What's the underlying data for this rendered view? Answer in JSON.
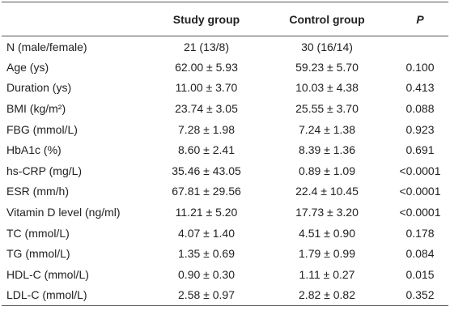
{
  "table": {
    "header": [
      "",
      "Study group",
      "Control group",
      "P"
    ],
    "rows": [
      [
        "N (male/female)",
        "21 (13/8)",
        "30 (16/14)",
        ""
      ],
      [
        "Age (ys)",
        "62.00 ± 5.93",
        "59.23 ± 5.70",
        "0.100"
      ],
      [
        "Duration (ys)",
        "11.00 ± 3.70",
        "10.03 ± 4.38",
        "0.413"
      ],
      [
        "BMI (kg/m²)",
        "23.74 ± 3.05",
        "25.55 ± 3.70",
        "0.088"
      ],
      [
        "FBG (mmol/L)",
        "7.28 ± 1.98",
        "7.24 ± 1.38",
        "0.923"
      ],
      [
        "HbA1c (%)",
        "8.60 ± 2.41",
        "8.39 ± 1.36",
        "0.691"
      ],
      [
        "hs-CRP (mg/L)",
        "35.46 ± 43.05",
        "0.89 ± 1.09",
        "<0.0001"
      ],
      [
        "ESR (mm/h)",
        "67.81 ± 29.56",
        "22.4 ± 10.45",
        "<0.0001"
      ],
      [
        "Vitamin D level (ng/ml)",
        "11.21 ± 5.20",
        "17.73 ± 3.20",
        "<0.0001"
      ],
      [
        "TC (mmol/L)",
        "4.07 ± 1.40",
        "4.51 ± 0.90",
        "0.178"
      ],
      [
        "TG (mmol/L)",
        "1.35 ± 0.69",
        "1.79 ± 0.99",
        "0.084"
      ],
      [
        "HDL-C (mmol/L)",
        "0.90 ± 0.30",
        "1.11 ± 0.27",
        "0.015"
      ],
      [
        "LDL-C (mmol/L)",
        "2.58 ± 0.97",
        "2.82 ± 0.82",
        "0.352"
      ]
    ]
  }
}
